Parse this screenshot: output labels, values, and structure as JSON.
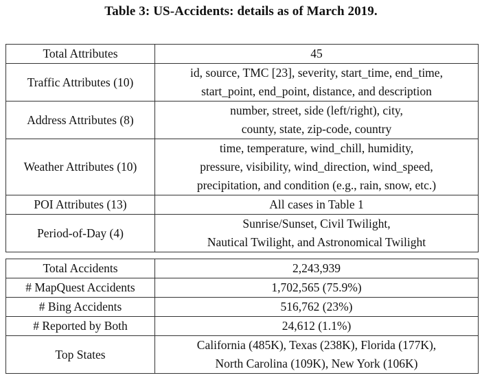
{
  "caption": {
    "label": "Table 3:",
    "text": "US-Accidents: details as of March 2019."
  },
  "attributes_rows": [
    {
      "label": "Total Attributes",
      "lines": [
        "45"
      ]
    },
    {
      "label": "Traffic Attributes (10)",
      "lines": [
        "id, source, TMC [23], severity, start_time, end_time,",
        "start_point, end_point, distance, and description"
      ]
    },
    {
      "label": "Address Attributes (8)",
      "lines": [
        "number, street, side (left/right), city,",
        "county, state, zip-code, country"
      ]
    },
    {
      "label": "Weather Attributes (10)",
      "lines": [
        "time, temperature, wind_chill, humidity,",
        "pressure, visibility, wind_direction, wind_speed,",
        "precipitation, and condition (e.g., rain, snow, etc.)"
      ]
    },
    {
      "label": "POI Attributes (13)",
      "lines": [
        "All cases in Table 1"
      ]
    },
    {
      "label": "Period-of-Day (4)",
      "lines": [
        "Sunrise/Sunset, Civil Twilight,",
        "Nautical Twilight, and Astronomical Twilight"
      ]
    }
  ],
  "accidents_rows": [
    {
      "label": "Total Accidents",
      "lines": [
        "2,243,939"
      ]
    },
    {
      "label": "# MapQuest Accidents",
      "lines": [
        "1,702,565 (75.9%)"
      ]
    },
    {
      "label": "# Bing Accidents",
      "lines": [
        "516,762 (23%)"
      ]
    },
    {
      "label": "# Reported by Both",
      "lines": [
        "24,612 (1.1%)"
      ]
    },
    {
      "label": "Top States",
      "lines": [
        "California (485K), Texas (238K), Florida (177K),",
        "North Carolina (109K), New York (106K)"
      ]
    }
  ]
}
